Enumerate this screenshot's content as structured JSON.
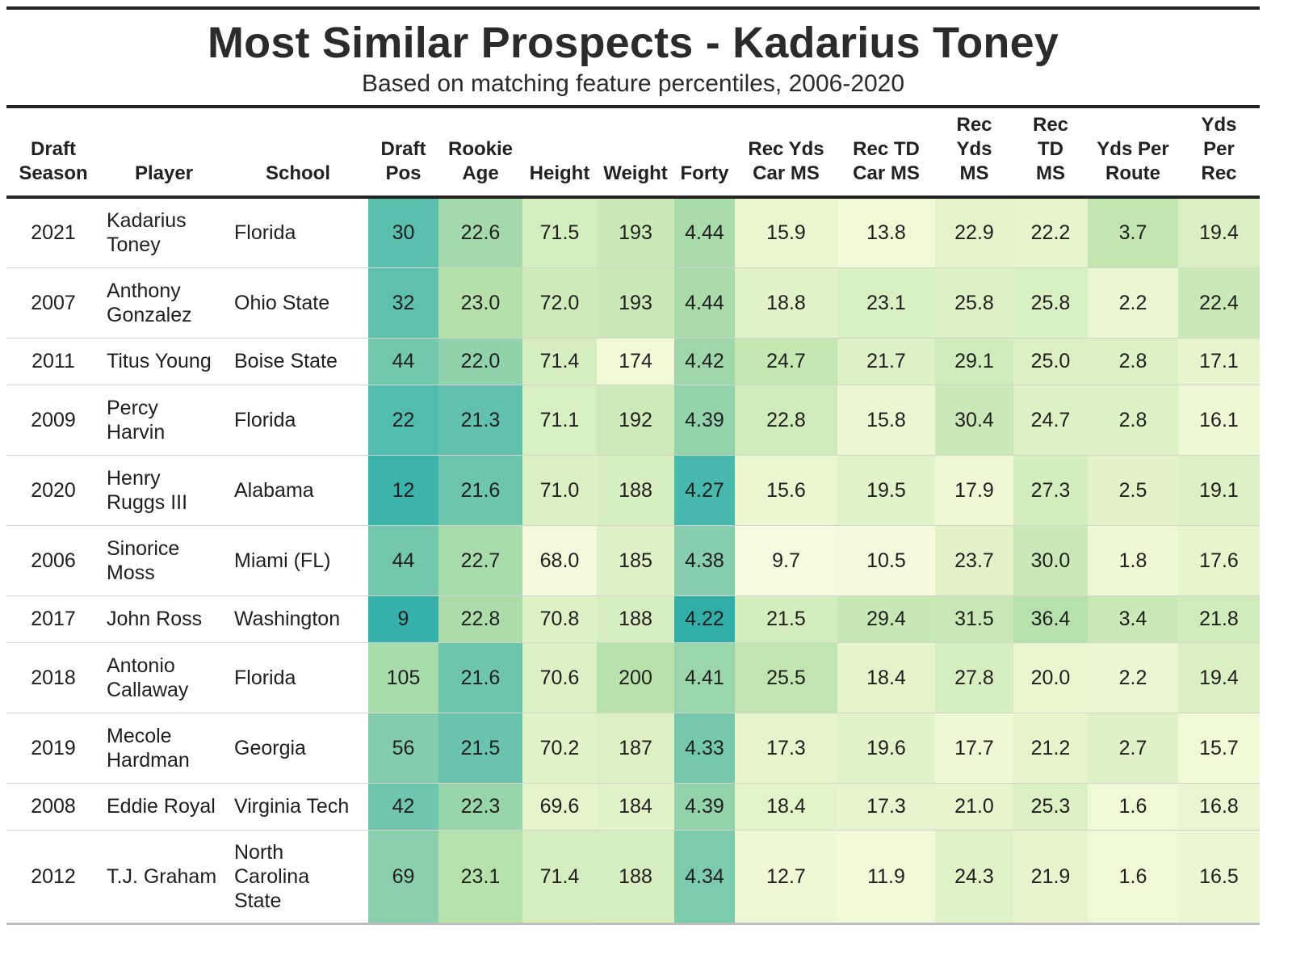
{
  "chart_data": {
    "type": "table",
    "title": "Most Similar Prospects - Kadarius Toney",
    "subtitle": "Based on matching feature percentiles, 2006-2020",
    "columns": [
      {
        "key": "season",
        "label": "Draft Season",
        "lines": [
          "Draft",
          "Season"
        ]
      },
      {
        "key": "player",
        "label": "Player",
        "lines": [
          "Player"
        ]
      },
      {
        "key": "school",
        "label": "School",
        "lines": [
          "School"
        ]
      },
      {
        "key": "draft_pos",
        "label": "Draft Pos",
        "lines": [
          "Draft",
          "Pos"
        ]
      },
      {
        "key": "rookie_age",
        "label": "Rookie Age",
        "lines": [
          "Rookie",
          "Age"
        ]
      },
      {
        "key": "height",
        "label": "Height",
        "lines": [
          "Height"
        ]
      },
      {
        "key": "weight",
        "label": "Weight",
        "lines": [
          "Weight"
        ]
      },
      {
        "key": "forty",
        "label": "Forty",
        "lines": [
          "Forty"
        ]
      },
      {
        "key": "rec_yds_car_ms",
        "label": "Rec Yds Car MS",
        "lines": [
          "Rec Yds",
          "Car MS"
        ]
      },
      {
        "key": "rec_td_car_ms",
        "label": "Rec TD Car MS",
        "lines": [
          "Rec TD",
          "Car MS"
        ]
      },
      {
        "key": "rec_yds_ms",
        "label": "Rec Yds MS",
        "lines": [
          "Rec",
          "Yds",
          "MS"
        ]
      },
      {
        "key": "rec_td_ms",
        "label": "Rec TD MS",
        "lines": [
          "Rec",
          "TD",
          "MS"
        ]
      },
      {
        "key": "yds_per_route",
        "label": "Yds Per Route",
        "lines": [
          "Yds Per",
          "Route"
        ]
      },
      {
        "key": "yds_per_rec",
        "label": "Yds Per Rec",
        "lines": [
          "Yds",
          "Per",
          "Rec"
        ]
      }
    ],
    "rows": [
      {
        "season": "2021",
        "player": [
          "Kadarius",
          "Toney"
        ],
        "school": [
          "Florida"
        ],
        "draft_pos": "30",
        "rookie_age": "22.6",
        "height": "71.5",
        "weight": "193",
        "forty": "4.44",
        "rec_yds_car_ms": "15.9",
        "rec_td_car_ms": "13.8",
        "rec_yds_ms": "22.9",
        "rec_td_ms": "22.2",
        "yds_per_route": "3.7",
        "yds_per_rec": "19.4"
      },
      {
        "season": "2007",
        "player": [
          "Anthony",
          "Gonzalez"
        ],
        "school": [
          "Ohio State"
        ],
        "draft_pos": "32",
        "rookie_age": "23.0",
        "height": "72.0",
        "weight": "193",
        "forty": "4.44",
        "rec_yds_car_ms": "18.8",
        "rec_td_car_ms": "23.1",
        "rec_yds_ms": "25.8",
        "rec_td_ms": "25.8",
        "yds_per_route": "2.2",
        "yds_per_rec": "22.4"
      },
      {
        "season": "2011",
        "player": [
          "Titus Young"
        ],
        "school": [
          "Boise State"
        ],
        "draft_pos": "44",
        "rookie_age": "22.0",
        "height": "71.4",
        "weight": "174",
        "forty": "4.42",
        "rec_yds_car_ms": "24.7",
        "rec_td_car_ms": "21.7",
        "rec_yds_ms": "29.1",
        "rec_td_ms": "25.0",
        "yds_per_route": "2.8",
        "yds_per_rec": "17.1"
      },
      {
        "season": "2009",
        "player": [
          "Percy",
          "Harvin"
        ],
        "school": [
          "Florida"
        ],
        "draft_pos": "22",
        "rookie_age": "21.3",
        "height": "71.1",
        "weight": "192",
        "forty": "4.39",
        "rec_yds_car_ms": "22.8",
        "rec_td_car_ms": "15.8",
        "rec_yds_ms": "30.4",
        "rec_td_ms": "24.7",
        "yds_per_route": "2.8",
        "yds_per_rec": "16.1"
      },
      {
        "season": "2020",
        "player": [
          "Henry",
          "Ruggs III"
        ],
        "school": [
          "Alabama"
        ],
        "draft_pos": "12",
        "rookie_age": "21.6",
        "height": "71.0",
        "weight": "188",
        "forty": "4.27",
        "rec_yds_car_ms": "15.6",
        "rec_td_car_ms": "19.5",
        "rec_yds_ms": "17.9",
        "rec_td_ms": "27.3",
        "yds_per_route": "2.5",
        "yds_per_rec": "19.1"
      },
      {
        "season": "2006",
        "player": [
          "Sinorice",
          "Moss"
        ],
        "school": [
          "Miami (FL)"
        ],
        "draft_pos": "44",
        "rookie_age": "22.7",
        "height": "68.0",
        "weight": "185",
        "forty": "4.38",
        "rec_yds_car_ms": "9.7",
        "rec_td_car_ms": "10.5",
        "rec_yds_ms": "23.7",
        "rec_td_ms": "30.0",
        "yds_per_route": "1.8",
        "yds_per_rec": "17.6"
      },
      {
        "season": "2017",
        "player": [
          "John Ross"
        ],
        "school": [
          "Washington"
        ],
        "draft_pos": "9",
        "rookie_age": "22.8",
        "height": "70.8",
        "weight": "188",
        "forty": "4.22",
        "rec_yds_car_ms": "21.5",
        "rec_td_car_ms": "29.4",
        "rec_yds_ms": "31.5",
        "rec_td_ms": "36.4",
        "yds_per_route": "3.4",
        "yds_per_rec": "21.8"
      },
      {
        "season": "2018",
        "player": [
          "Antonio",
          "Callaway"
        ],
        "school": [
          "Florida"
        ],
        "draft_pos": "105",
        "rookie_age": "21.6",
        "height": "70.6",
        "weight": "200",
        "forty": "4.41",
        "rec_yds_car_ms": "25.5",
        "rec_td_car_ms": "18.4",
        "rec_yds_ms": "27.8",
        "rec_td_ms": "20.0",
        "yds_per_route": "2.2",
        "yds_per_rec": "19.4"
      },
      {
        "season": "2019",
        "player": [
          "Mecole",
          "Hardman"
        ],
        "school": [
          "Georgia"
        ],
        "draft_pos": "56",
        "rookie_age": "21.5",
        "height": "70.2",
        "weight": "187",
        "forty": "4.33",
        "rec_yds_car_ms": "17.3",
        "rec_td_car_ms": "19.6",
        "rec_yds_ms": "17.7",
        "rec_td_ms": "21.2",
        "yds_per_route": "2.7",
        "yds_per_rec": "15.7"
      },
      {
        "season": "2008",
        "player": [
          "Eddie Royal"
        ],
        "school": [
          "Virginia Tech"
        ],
        "draft_pos": "42",
        "rookie_age": "22.3",
        "height": "69.6",
        "weight": "184",
        "forty": "4.39",
        "rec_yds_car_ms": "18.4",
        "rec_td_car_ms": "17.3",
        "rec_yds_ms": "21.0",
        "rec_td_ms": "25.3",
        "yds_per_route": "1.6",
        "yds_per_rec": "16.8"
      },
      {
        "season": "2012",
        "player": [
          "T.J. Graham"
        ],
        "school": [
          "North",
          "Carolina",
          "State"
        ],
        "draft_pos": "69",
        "rookie_age": "23.1",
        "height": "71.4",
        "weight": "188",
        "forty": "4.34",
        "rec_yds_car_ms": "12.7",
        "rec_td_car_ms": "11.9",
        "rec_yds_ms": "24.3",
        "rec_td_ms": "21.9",
        "yds_per_route": "1.6",
        "yds_per_rec": "16.5"
      }
    ],
    "cell_colors": {
      "draft_pos": [
        "#5bbfae",
        "#5fc0ae",
        "#73c7ad",
        "#52bcae",
        "#3cb3ab",
        "#73c7ad",
        "#35b0aa",
        "#a9dcab",
        "#83cdad",
        "#6fc5ad",
        "#8ad0ad"
      ],
      "rookie_age": [
        "#a3d9ab",
        "#b5e0aa",
        "#8fd2ac",
        "#61c1ae",
        "#6ec5ad",
        "#a8dbab",
        "#addcab",
        "#6ec5ad",
        "#69c3ad",
        "#99d5ab",
        "#b7e1aa"
      ],
      "height": [
        "#d5eebe",
        "#cdeab8",
        "#d6eebf",
        "#d8efc1",
        "#daf0c3",
        "#f4fadb",
        "#dcf1c4",
        "#ddf1c6",
        "#e1f3c9",
        "#e5f5cc",
        "#d6eebf"
      ],
      "weight": [
        "#cbe9b6",
        "#cbe9b6",
        "#f1f9d7",
        "#cdeab8",
        "#d7efc0",
        "#dff2c7",
        "#d7efc0",
        "#b9e2ab",
        "#dbf0c3",
        "#e1f3c9",
        "#d7efc0"
      ],
      "forty": [
        "#aadbab",
        "#aadbab",
        "#9fd7ab",
        "#92d3ab",
        "#48b8ac",
        "#86cead",
        "#32aea9",
        "#9ad5ab",
        "#76c8ad",
        "#92d3ab",
        "#7ccbad"
      ],
      "rec_yds_car_ms": [
        "#e9f6d0",
        "#e1f3c8",
        "#c5e7b2",
        "#cfebba",
        "#eaf7d1",
        "#f6fbdf",
        "#d4edbd",
        "#c1e5b0",
        "#e5f5cc",
        "#e2f4c9",
        "#eef8d5"
      ],
      "rec_td_car_ms": [
        "#f1f9d7",
        "#d9f0c2",
        "#ddf1c6",
        "#ebf7d2",
        "#e1f3c9",
        "#f4fadb",
        "#c7e8b4",
        "#e4f4cb",
        "#e1f3c9",
        "#e7f5ce",
        "#f2f9d9"
      ],
      "rec_yds_ms": [
        "#e3f4ca",
        "#dcf1c4",
        "#d0ecba",
        "#cbe9b6",
        "#eef8d5",
        "#e2f3c9",
        "#c9e8b5",
        "#d7efc0",
        "#eef8d5",
        "#e7f5ce",
        "#e0f2c7"
      ],
      "rec_td_ms": [
        "#e5f5cc",
        "#d9f0c2",
        "#dbf0c3",
        "#dcf1c4",
        "#d3edbc",
        "#cbe9b6",
        "#b7e1aa",
        "#e9f6d0",
        "#e7f5cd",
        "#dbf0c3",
        "#e6f5cd"
      ],
      "yds_per_route": [
        "#c3e6b1",
        "#ebf7d2",
        "#dcf1c4",
        "#dcf1c4",
        "#e2f3c9",
        "#eef8d5",
        "#cbe9b6",
        "#ebf7d2",
        "#dff2c7",
        "#f0f9d6",
        "#f0f9d6"
      ],
      "yds_per_rec": [
        "#daf0c3",
        "#cbe9b6",
        "#e7f5ce",
        "#eef8d5",
        "#ddf1c6",
        "#e5f5cc",
        "#d0ecba",
        "#daf0c3",
        "#f0f9d6",
        "#eaf6d1",
        "#ebf7d2"
      ]
    }
  }
}
